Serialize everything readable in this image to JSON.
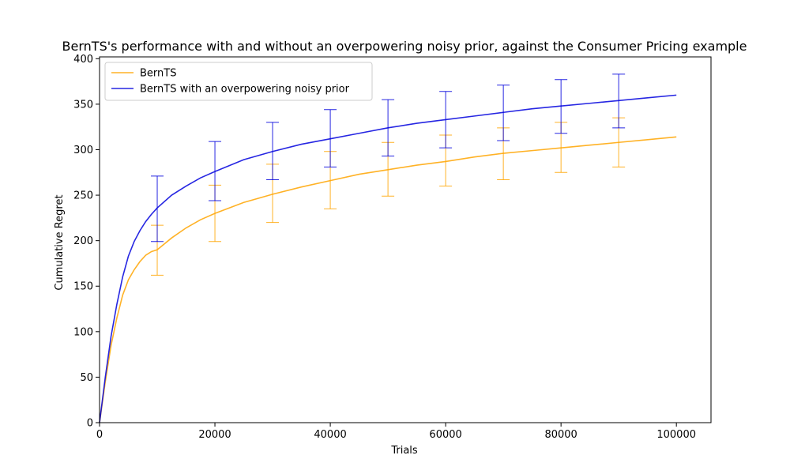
{
  "chart_data": {
    "type": "line",
    "title": "BernTS's performance with and without an overpowering noisy prior, against the Consumer Pricing example",
    "xlabel": "Trials",
    "ylabel": "Cumulative Regret",
    "xlim": [
      0,
      106000
    ],
    "ylim": [
      0,
      402
    ],
    "xticks": [
      0,
      20000,
      40000,
      60000,
      80000,
      100000
    ],
    "xtick_labels": [
      "0",
      "20000",
      "40000",
      "60000",
      "80000",
      "100000"
    ],
    "yticks": [
      0,
      50,
      100,
      150,
      200,
      250,
      300,
      350,
      400
    ],
    "ytick_labels": [
      "0",
      "50",
      "100",
      "150",
      "200",
      "250",
      "300",
      "350",
      "400"
    ],
    "grid": false,
    "legend_position": "top-left",
    "series": [
      {
        "name": "BernTS",
        "color": "#FFA500",
        "x": [
          0,
          1000,
          2000,
          3000,
          4000,
          5000,
          6000,
          7000,
          8000,
          9000,
          10000,
          12500,
          15000,
          17500,
          20000,
          25000,
          30000,
          35000,
          40000,
          45000,
          50000,
          55000,
          60000,
          65000,
          70000,
          75000,
          80000,
          85000,
          90000,
          95000,
          100000
        ],
        "y": [
          0,
          45,
          85,
          115,
          140,
          157,
          168,
          177,
          184,
          188,
          190,
          203,
          214,
          223,
          230,
          242,
          251,
          259,
          266,
          273,
          278,
          283,
          287,
          292,
          296,
          299,
          302,
          305,
          308,
          311,
          314
        ],
        "errorbars": {
          "x": [
            10000,
            20000,
            30000,
            40000,
            50000,
            60000,
            70000,
            80000,
            90000
          ],
          "lower": [
            162,
            199,
            220,
            235,
            249,
            260,
            267,
            275,
            281
          ],
          "upper": [
            217,
            261,
            284,
            298,
            308,
            316,
            324,
            330,
            335
          ]
        }
      },
      {
        "name": "BernTS with an overpowering noisy prior",
        "color": "#0000DD",
        "x": [
          0,
          1000,
          2000,
          3000,
          4000,
          5000,
          6000,
          7000,
          8000,
          9000,
          10000,
          12500,
          15000,
          17500,
          20000,
          25000,
          30000,
          35000,
          40000,
          45000,
          50000,
          55000,
          60000,
          65000,
          70000,
          75000,
          80000,
          85000,
          90000,
          95000,
          100000
        ],
        "y": [
          0,
          50,
          95,
          130,
          160,
          183,
          199,
          211,
          221,
          229,
          236,
          250,
          260,
          269,
          276,
          289,
          298,
          306,
          312,
          318,
          324,
          329,
          333,
          337,
          341,
          345,
          348,
          351,
          354,
          357,
          360
        ],
        "errorbars": {
          "x": [
            10000,
            20000,
            30000,
            40000,
            50000,
            60000,
            70000,
            80000,
            90000
          ],
          "lower": [
            199,
            244,
            267,
            281,
            293,
            302,
            310,
            318,
            324
          ],
          "upper": [
            271,
            309,
            330,
            344,
            355,
            364,
            371,
            377,
            383
          ]
        }
      }
    ]
  }
}
